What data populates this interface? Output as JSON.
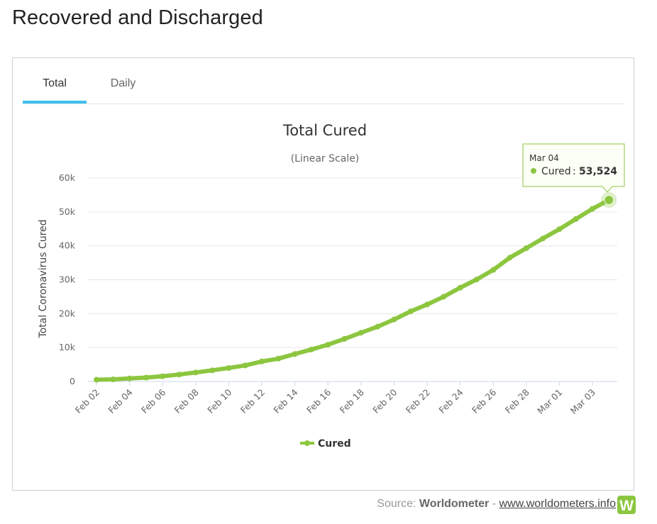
{
  "page": {
    "title": "Recovered and Discharged"
  },
  "tabs": [
    {
      "label": "Total",
      "active": true
    },
    {
      "label": "Daily",
      "active": false
    }
  ],
  "chart_data": {
    "type": "line",
    "title": "Total Cured",
    "subtitle": "(Linear Scale)",
    "xlabel": "",
    "ylabel": "Total Coronavirus Cured",
    "ylim": [
      0,
      60000
    ],
    "y_ticks": [
      0,
      10000,
      20000,
      30000,
      40000,
      50000,
      60000
    ],
    "y_tick_labels": [
      "0",
      "10k",
      "20k",
      "30k",
      "40k",
      "50k",
      "60k"
    ],
    "grid": true,
    "legend": "bottom-center",
    "color": "#8cc63f",
    "categories": [
      "Feb 02",
      "Feb 03",
      "Feb 04",
      "Feb 05",
      "Feb 06",
      "Feb 07",
      "Feb 08",
      "Feb 09",
      "Feb 10",
      "Feb 11",
      "Feb 12",
      "Feb 13",
      "Feb 14",
      "Feb 15",
      "Feb 16",
      "Feb 17",
      "Feb 18",
      "Feb 19",
      "Feb 20",
      "Feb 21",
      "Feb 22",
      "Feb 23",
      "Feb 24",
      "Feb 25",
      "Feb 26",
      "Feb 27",
      "Feb 28",
      "Feb 29",
      "Mar 01",
      "Mar 02",
      "Mar 03",
      "Mar 04"
    ],
    "x_tick_labels": [
      "Feb 02",
      "Feb 04",
      "Feb 06",
      "Feb 08",
      "Feb 10",
      "Feb 12",
      "Feb 14",
      "Feb 16",
      "Feb 18",
      "Feb 20",
      "Feb 22",
      "Feb 24",
      "Feb 26",
      "Feb 28",
      "Mar 01",
      "Mar 03"
    ],
    "series": [
      {
        "name": "Cured",
        "values": [
          510,
          630,
          900,
          1150,
          1540,
          2050,
          2650,
          3280,
          3980,
          4740,
          5900,
          6730,
          8100,
          9420,
          10850,
          12560,
          14380,
          16160,
          18270,
          20660,
          22700,
          24990,
          27650,
          30090,
          32900,
          36500,
          39300,
          42160,
          44900,
          47900,
          50900,
          53524
        ]
      }
    ],
    "tooltip": {
      "date": "Mar 04",
      "series": "Cured",
      "value": "53,524"
    }
  },
  "footer": {
    "source_prefix": "Source:",
    "source_name": "Worldometer",
    "separator": "-",
    "source_url": "www.worldometers.info"
  },
  "logo": {
    "letter": "W"
  }
}
